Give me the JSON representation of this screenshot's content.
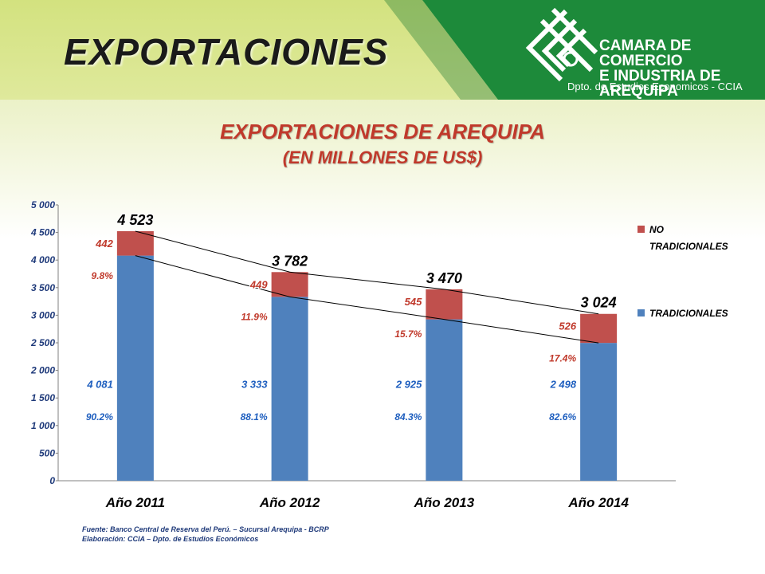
{
  "header": {
    "title": "EXPORTACIONES",
    "org_lines": [
      "CAMARA DE COMERCIO",
      "E INDUSTRIA DE",
      "AREQUIPA"
    ],
    "org_sub": "Dpto. de Estudios Economicos - CCIA"
  },
  "chart_data": {
    "type": "bar",
    "stacked": true,
    "title": "EXPORTACIONES DE AREQUIPA",
    "subtitle": "(EN MILLONES DE US$)",
    "categories": [
      "Año 2011",
      "Año 2012",
      "Año 2013",
      "Año 2014"
    ],
    "totals": [
      "4 523",
      "3 782",
      "3 470",
      "3 024"
    ],
    "total_values": [
      4523,
      3782,
      3470,
      3024
    ],
    "series": [
      {
        "name": "TRADICIONALES",
        "color": "#4f81bd",
        "values": [
          4081,
          3333,
          2925,
          2498
        ],
        "labels": [
          "4 081",
          "3 333",
          "2 925",
          "2 498"
        ],
        "shares": [
          "90.2%",
          "88.1%",
          "84.3%",
          "82.6%"
        ]
      },
      {
        "name": "NO TRADICIONALES",
        "color": "#c0504d",
        "values": [
          442,
          449,
          545,
          526
        ],
        "labels": [
          "442",
          "449",
          "545",
          "526"
        ],
        "shares": [
          "9.8%",
          "11.9%",
          "15.7%",
          "17.4%"
        ]
      }
    ],
    "ylim": [
      0,
      5000
    ],
    "yticks": [
      0,
      500,
      1000,
      1500,
      2000,
      2500,
      3000,
      3500,
      4000,
      4500,
      5000
    ],
    "ytick_labels": [
      "0",
      "500",
      "1 000",
      "1 500",
      "2 000",
      "2 500",
      "3 000",
      "3 500",
      "4 000",
      "4 500",
      "5 000"
    ],
    "grid": false,
    "legend_position": "right"
  },
  "footer": {
    "source": "Fuente: Banco Central de Reserva del Perú. – Sucursal Arequipa - BCRP",
    "elaboration": "Elaboración: CCIA – Dpto. de Estudios Económicos"
  }
}
